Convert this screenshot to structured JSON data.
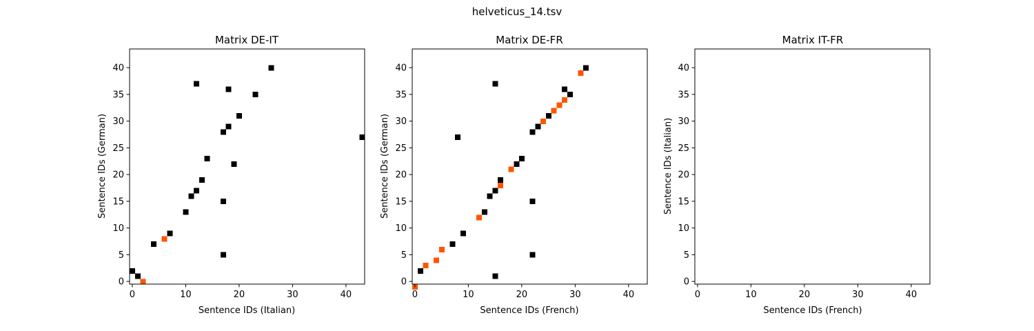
{
  "figure": {
    "title": "helveticus_14.tsv"
  },
  "chart_data": [
    {
      "type": "heatmap",
      "title": "Matrix DE-IT",
      "xlabel": "Sentence IDs (Italian)",
      "ylabel": "Sentence IDs (German)",
      "xlim": [
        -0.5,
        43.5
      ],
      "ylim": [
        43.5,
        -0.5
      ],
      "xticks": [
        0,
        10,
        20,
        30,
        40
      ],
      "yticks": [
        0,
        5,
        10,
        15,
        20,
        25,
        30,
        35,
        40
      ],
      "colors": {
        "black": "#000000",
        "orange": "#ff5500"
      },
      "black_cells": [
        [
          0,
          3
        ],
        [
          1,
          2
        ],
        [
          17,
          6
        ],
        [
          4,
          8
        ],
        [
          7,
          10
        ],
        [
          10,
          14
        ],
        [
          17,
          16
        ],
        [
          11,
          17
        ],
        [
          12,
          18
        ],
        [
          13,
          20
        ],
        [
          19,
          23
        ],
        [
          14,
          24
        ],
        [
          43,
          28
        ],
        [
          17,
          29
        ],
        [
          18,
          30
        ],
        [
          20,
          32
        ],
        [
          23,
          36
        ],
        [
          18,
          37
        ],
        [
          12,
          38
        ],
        [
          26,
          41
        ]
      ],
      "orange_cells": [
        [
          2,
          1
        ],
        [
          6,
          9
        ]
      ]
    },
    {
      "type": "heatmap",
      "title": "Matrix DE-FR",
      "xlabel": "Sentence IDs (French)",
      "ylabel": "Sentence IDs (German)",
      "xlim": [
        -0.5,
        43.5
      ],
      "ylim": [
        43.5,
        -0.5
      ],
      "xticks": [
        0,
        10,
        20,
        30,
        40
      ],
      "yticks": [
        0,
        5,
        10,
        15,
        20,
        25,
        30,
        35,
        40
      ],
      "colors": {
        "black": "#000000",
        "orange": "#ff5500"
      },
      "black_cells": [
        [
          15,
          2
        ],
        [
          1,
          3
        ],
        [
          22,
          6
        ],
        [
          7,
          8
        ],
        [
          9,
          10
        ],
        [
          13,
          14
        ],
        [
          22,
          16
        ],
        [
          14,
          17
        ],
        [
          15,
          18
        ],
        [
          16,
          20
        ],
        [
          19,
          23
        ],
        [
          20,
          24
        ],
        [
          8,
          28
        ],
        [
          22,
          29
        ],
        [
          23,
          30
        ],
        [
          25,
          32
        ],
        [
          29,
          36
        ],
        [
          28,
          37
        ],
        [
          15,
          38
        ],
        [
          32,
          41
        ]
      ],
      "orange_cells": [
        [
          0,
          0
        ],
        [
          2,
          4
        ],
        [
          4,
          5
        ],
        [
          5,
          7
        ],
        [
          12,
          13
        ],
        [
          16,
          19
        ],
        [
          18,
          22
        ],
        [
          24,
          31
        ],
        [
          26,
          33
        ],
        [
          27,
          34
        ],
        [
          28,
          35
        ],
        [
          31,
          40
        ]
      ]
    },
    {
      "type": "heatmap",
      "title": "Matrix IT-FR",
      "xlabel": "Sentence IDs (French)",
      "ylabel": "Sentence IDs (Italian)",
      "xlim": [
        -0.5,
        43.5
      ],
      "ylim": [
        43.5,
        -0.5
      ],
      "xticks": [
        0,
        10,
        20,
        30,
        40
      ],
      "yticks": [
        0,
        5,
        10,
        15,
        20,
        25,
        30,
        35,
        40
      ],
      "colors": {
        "black": "#000000",
        "orange": "#ff5500"
      },
      "black_cells": [],
      "orange_cells": []
    }
  ]
}
